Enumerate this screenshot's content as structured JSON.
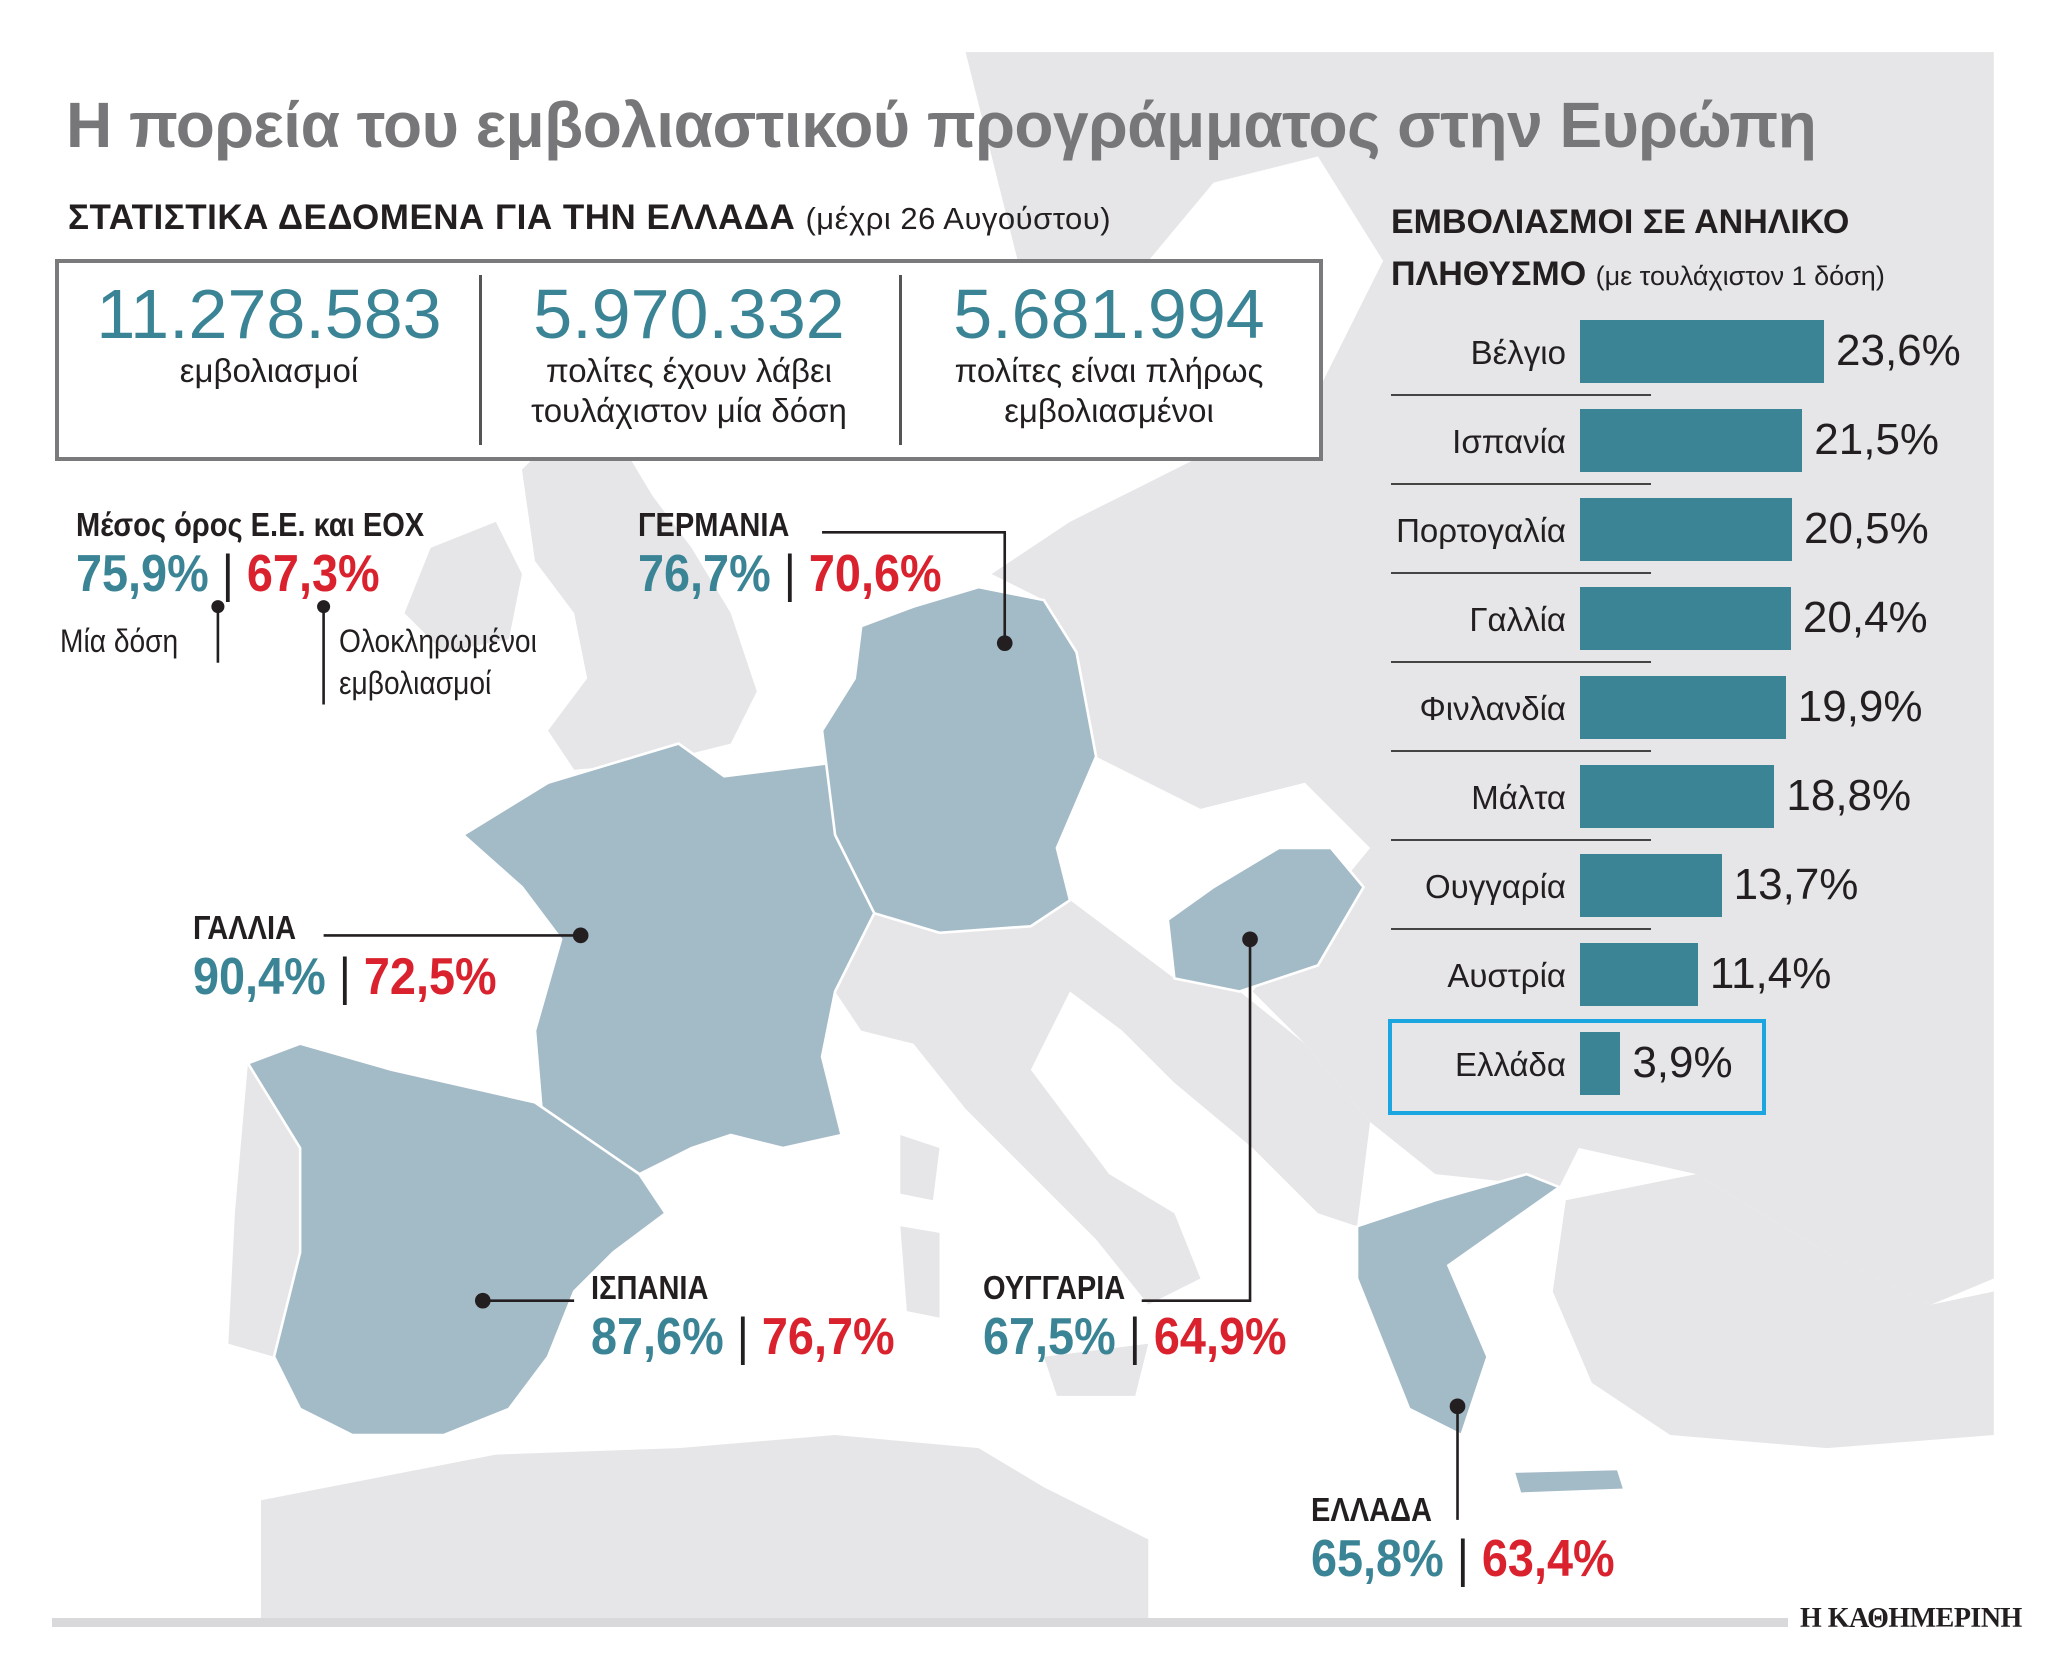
{
  "title": "Η πορεία του εμβολιαστικού προγράμματος στην Ευρώπη",
  "greece_stats": {
    "heading": "ΣΤΑΤΙΣΤΙΚΑ ΔΕΔΟΜΕΝΑ ΓΙΑ ΤΗΝ ΕΛΛΑΔΑ",
    "heading_note": "(μέχρι 26 Αυγούστου)",
    "items": [
      {
        "value": "11.278.583",
        "label_1": "εμβολιασμοί",
        "label_2": ""
      },
      {
        "value": "5.970.332",
        "label_1": "πολίτες έχουν λάβει",
        "label_2": "τουλάχιστον μία δόση"
      },
      {
        "value": "5.681.994",
        "label_1": "πολίτες είναι πλήρως",
        "label_2": "εμβολιασμένοι"
      }
    ]
  },
  "legend": {
    "one_dose": "Μία δόση",
    "complete_1": "Ολοκληρωμένοι",
    "complete_2": "εμβολιασμοί"
  },
  "map_labels": [
    {
      "name": "Μέσος όρος Ε.Ε. και ΕΟΧ",
      "one_dose": "75,9%",
      "complete": "67,3%"
    },
    {
      "name": "ΓΕΡΜΑΝΙΑ",
      "one_dose": "76,7%",
      "complete": "70,6%"
    },
    {
      "name": "ΓΑΛΛΙΑ",
      "one_dose": "90,4%",
      "complete": "72,5%"
    },
    {
      "name": "ΙΣΠΑΝΙΑ",
      "one_dose": "87,6%",
      "complete": "76,7%"
    },
    {
      "name": "ΟΥΓΓΑΡΙΑ",
      "one_dose": "67,5%",
      "complete": "64,9%"
    },
    {
      "name": "ΕΛΛΑΔΑ",
      "one_dose": "65,8%",
      "complete": "63,4%"
    }
  ],
  "separator": "|",
  "colors": {
    "one_dose": "#3a8496",
    "complete": "#d9222d",
    "bar": "#3a8496",
    "highlight_box": "#1ba6e0",
    "highlighted_country": "#a3bac7",
    "land": "#e6e6e8"
  },
  "chart_data": {
    "type": "bar",
    "orientation": "horizontal",
    "title": "ΕΜΒΟΛΙΑΣΜΟΙ ΣΕ ΑΝΗΛΙΚΟ ΠΛΗΘΥΣΜΟ",
    "title_line_1": "ΕΜΒΟΛΙΑΣΜΟΙ ΣΕ ΑΝΗΛΙΚΟ",
    "title_line_2": "ΠΛΗΘΥΣΜΟ",
    "subtitle": "(με τουλάχιστον 1 δόση)",
    "categories": [
      "Βέλγιο",
      "Ισπανία",
      "Πορτογαλία",
      "Γαλλία",
      "Φινλανδία",
      "Μάλτα",
      "Ουγγαρία",
      "Αυστρία",
      "Ελλάδα"
    ],
    "values": [
      23.6,
      21.5,
      20.5,
      20.4,
      19.9,
      18.8,
      13.7,
      11.4,
      3.9
    ],
    "value_labels": [
      "23,6%",
      "21,5%",
      "20,5%",
      "20,4%",
      "19,9%",
      "18,8%",
      "13,7%",
      "11,4%",
      "3,9%"
    ],
    "highlighted": "Ελλάδα",
    "unit": "%"
  },
  "footer": {
    "logo": "Η ΚΑΘΗΜΕΡΙΝΗ"
  }
}
